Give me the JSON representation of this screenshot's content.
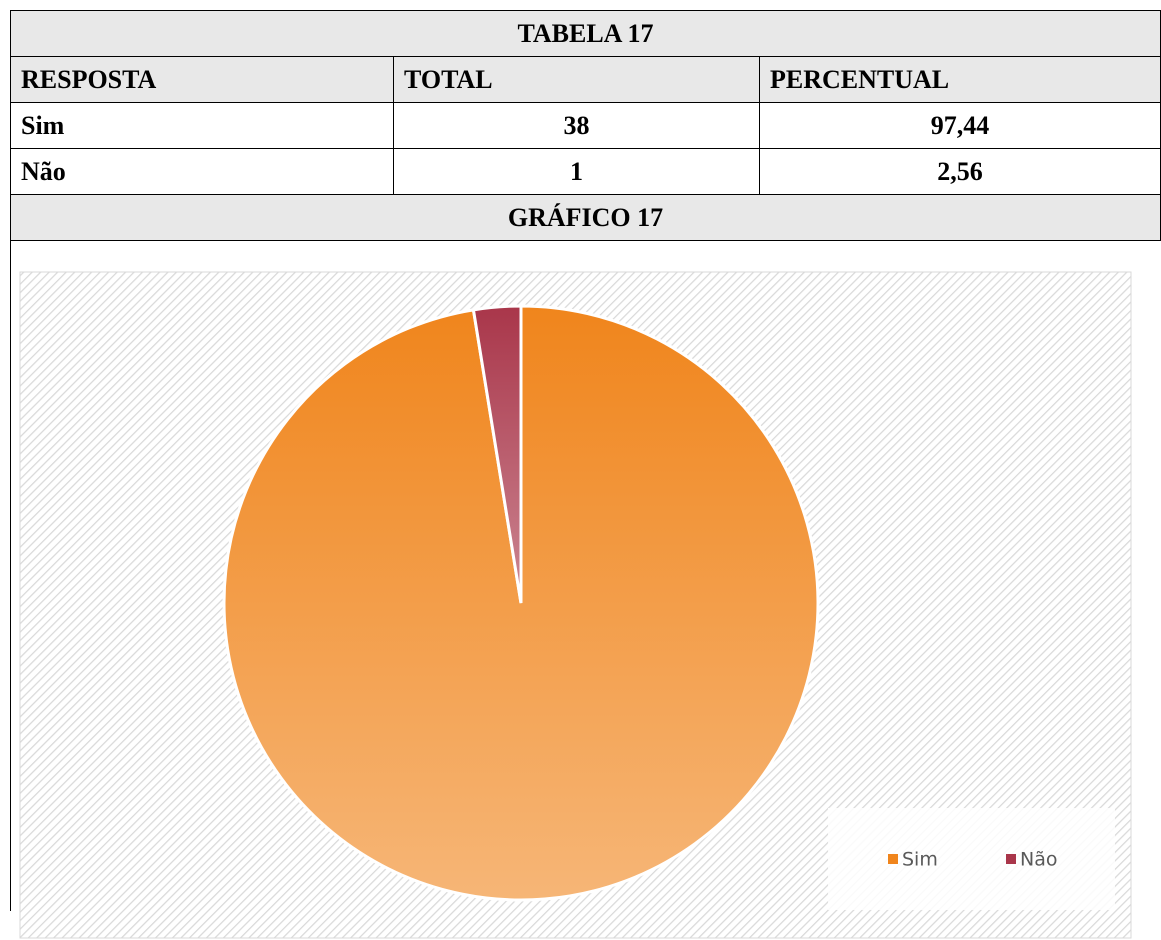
{
  "table": {
    "title": "TABELA 17",
    "header": [
      "RESPOSTA",
      "TOTAL",
      "PERCENTUAL"
    ],
    "rows": [
      [
        "Sim",
        "38",
        "97,44"
      ],
      [
        "Não",
        "1",
        "2,56"
      ]
    ]
  },
  "chart_data": {
    "type": "pie",
    "title": "GRÁFICO 17",
    "categories": [
      "Sim",
      "Não"
    ],
    "values": [
      97.44,
      2.56
    ],
    "colors": [
      "#f0851c",
      "#a9364a"
    ],
    "legend": "bottom-right"
  }
}
